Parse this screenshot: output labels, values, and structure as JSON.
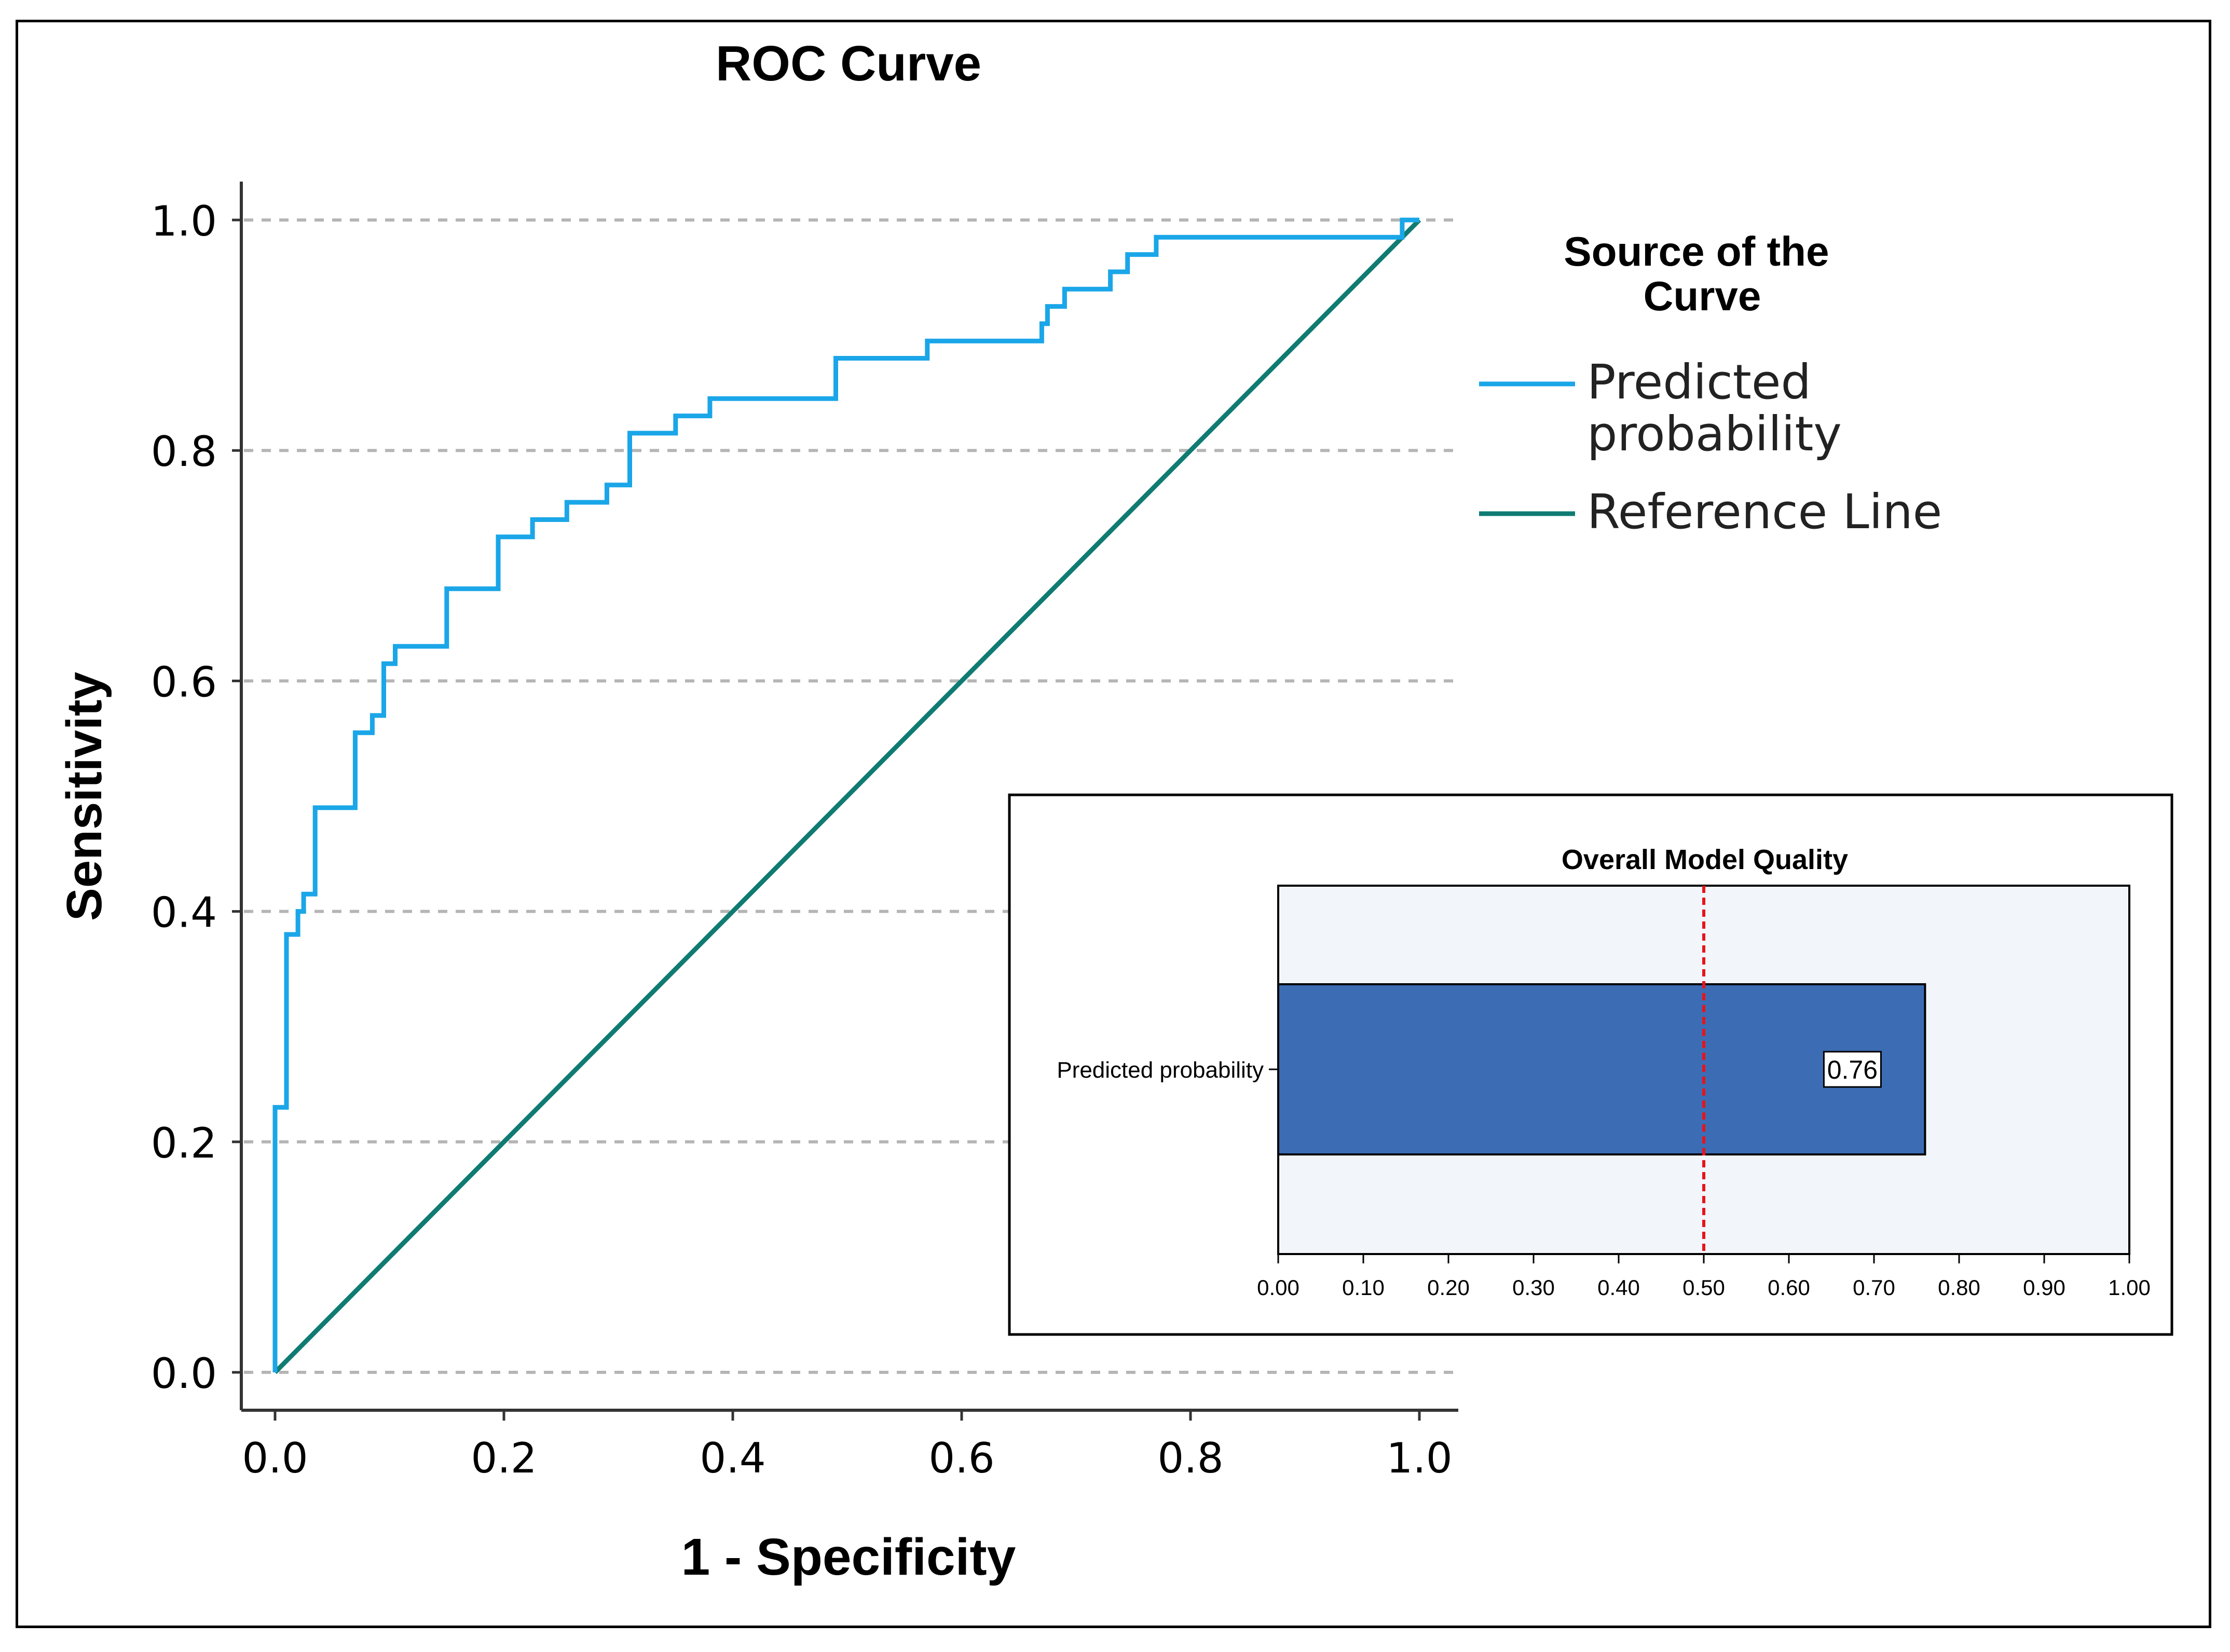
{
  "chart_data": [
    {
      "type": "line",
      "title": "ROC Curve",
      "xlabel": "1 - Specificity",
      "ylabel": "Sensitivity",
      "xlim": [
        0,
        1
      ],
      "ylim": [
        0,
        1
      ],
      "xticks": [
        "0.0",
        "0.2",
        "0.4",
        "0.6",
        "0.8",
        "1.0"
      ],
      "yticks": [
        "0.0",
        "0.2",
        "0.4",
        "0.6",
        "0.8",
        "1.0"
      ],
      "grid": "horizontal dashed",
      "legend": {
        "title": "Source of the Curve",
        "title_lines": [
          "Source of the",
          "Curve"
        ],
        "placement": "right",
        "entries": [
          {
            "label": "Predicted probability",
            "lines": [
              "Predicted",
              "probability"
            ],
            "color": "#1aa6e8"
          },
          {
            "label": "Reference Line",
            "lines": [
              "Reference Line"
            ],
            "color": "#0f7b72"
          }
        ]
      },
      "series": [
        {
          "name": "Predicted probability",
          "color": "#1aa6e8",
          "x": [
            0,
            0,
            0.01,
            0.01,
            0.02,
            0.02,
            0.025,
            0.025,
            0.035,
            0.035,
            0.07,
            0.07,
            0.085,
            0.085,
            0.095,
            0.095,
            0.105,
            0.105,
            0.15,
            0.15,
            0.195,
            0.195,
            0.225,
            0.225,
            0.255,
            0.255,
            0.29,
            0.29,
            0.31,
            0.31,
            0.35,
            0.35,
            0.38,
            0.38,
            0.49,
            0.49,
            0.57,
            0.57,
            0.67,
            0.67,
            0.675,
            0.675,
            0.69,
            0.69,
            0.73,
            0.73,
            0.745,
            0.745,
            0.77,
            0.77,
            0.985,
            0.985,
            1.0
          ],
          "y": [
            0,
            0.23,
            0.23,
            0.38,
            0.38,
            0.4,
            0.4,
            0.415,
            0.415,
            0.49,
            0.49,
            0.555,
            0.555,
            0.57,
            0.57,
            0.615,
            0.615,
            0.63,
            0.63,
            0.68,
            0.68,
            0.725,
            0.725,
            0.74,
            0.74,
            0.755,
            0.755,
            0.77,
            0.77,
            0.815,
            0.815,
            0.83,
            0.83,
            0.845,
            0.845,
            0.88,
            0.88,
            0.895,
            0.895,
            0.91,
            0.91,
            0.925,
            0.925,
            0.94,
            0.94,
            0.955,
            0.955,
            0.97,
            0.97,
            0.985,
            0.985,
            1.0,
            1.0
          ]
        },
        {
          "name": "Reference Line",
          "color": "#0f7b72",
          "x": [
            0,
            1
          ],
          "y": [
            0,
            1
          ]
        }
      ]
    },
    {
      "type": "bar",
      "orientation": "horizontal",
      "title": "Overall Model Quality",
      "categories": [
        "Predicted probability"
      ],
      "values": [
        0.76
      ],
      "value_labels": [
        "0.76"
      ],
      "reference_line": 0.5,
      "reference_line_color": "#e8141b",
      "bar_color": "#3c6db4",
      "background_color": "#f2f6fa",
      "xlim": [
        0,
        1
      ],
      "xticks": [
        "0.00",
        "0.10",
        "0.20",
        "0.30",
        "0.40",
        "0.50",
        "0.60",
        "0.70",
        "0.80",
        "0.90",
        "1.00"
      ]
    }
  ]
}
